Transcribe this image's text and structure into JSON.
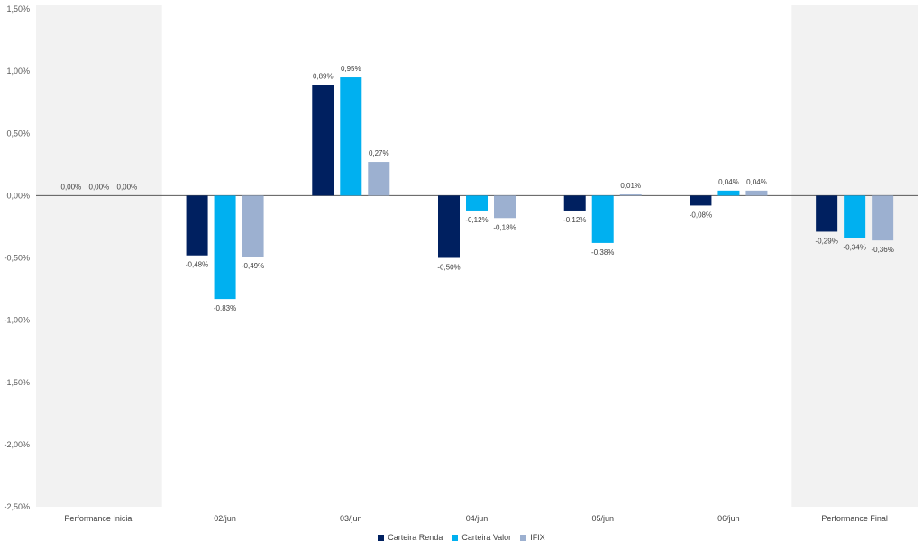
{
  "chart_data": {
    "type": "bar",
    "title": "",
    "xlabel": "",
    "ylabel": "",
    "ylim": [
      -2.5,
      1.5
    ],
    "yticks": [
      1.5,
      1.0,
      0.5,
      0.0,
      -0.5,
      -1.0,
      -1.5,
      -2.0,
      -2.5
    ],
    "ytick_labels": [
      "1,50%",
      "1,00%",
      "0,50%",
      "0,00%",
      "-0,50%",
      "-1,00%",
      "-1,50%",
      "-2,00%",
      "-2,50%"
    ],
    "categories": [
      "Performance Inicial",
      "02/jun",
      "03/jun",
      "04/jun",
      "05/jun",
      "06/jun",
      "Performance Final"
    ],
    "highlighted_categories": [
      "Performance Inicial",
      "Performance Final"
    ],
    "series": [
      {
        "name": "Carteira Renda",
        "color": "#002060",
        "values": [
          0.0,
          -0.48,
          0.89,
          -0.5,
          -0.12,
          -0.08,
          -0.29
        ],
        "labels": [
          "0,00%",
          "-0,48%",
          "0,89%",
          "-0,50%",
          "-0,12%",
          "-0,08%",
          "-0,29%"
        ]
      },
      {
        "name": "Carteira Valor",
        "color": "#00B0F0",
        "values": [
          0.0,
          -0.83,
          0.95,
          -0.12,
          -0.38,
          0.04,
          -0.34
        ],
        "labels": [
          "0,00%",
          "-0,83%",
          "0,95%",
          "-0,12%",
          "-0,38%",
          "0,04%",
          "-0,34%"
        ]
      },
      {
        "name": "IFIX",
        "color": "#9CB0D0",
        "values": [
          0.0,
          -0.49,
          0.27,
          -0.18,
          0.01,
          0.04,
          -0.36
        ],
        "labels": [
          "0,00%",
          "-0,49%",
          "0,27%",
          "-0,18%",
          "0,01%",
          "0,04%",
          "-0,36%"
        ]
      }
    ],
    "grid": false,
    "legend_position": "bottom"
  }
}
